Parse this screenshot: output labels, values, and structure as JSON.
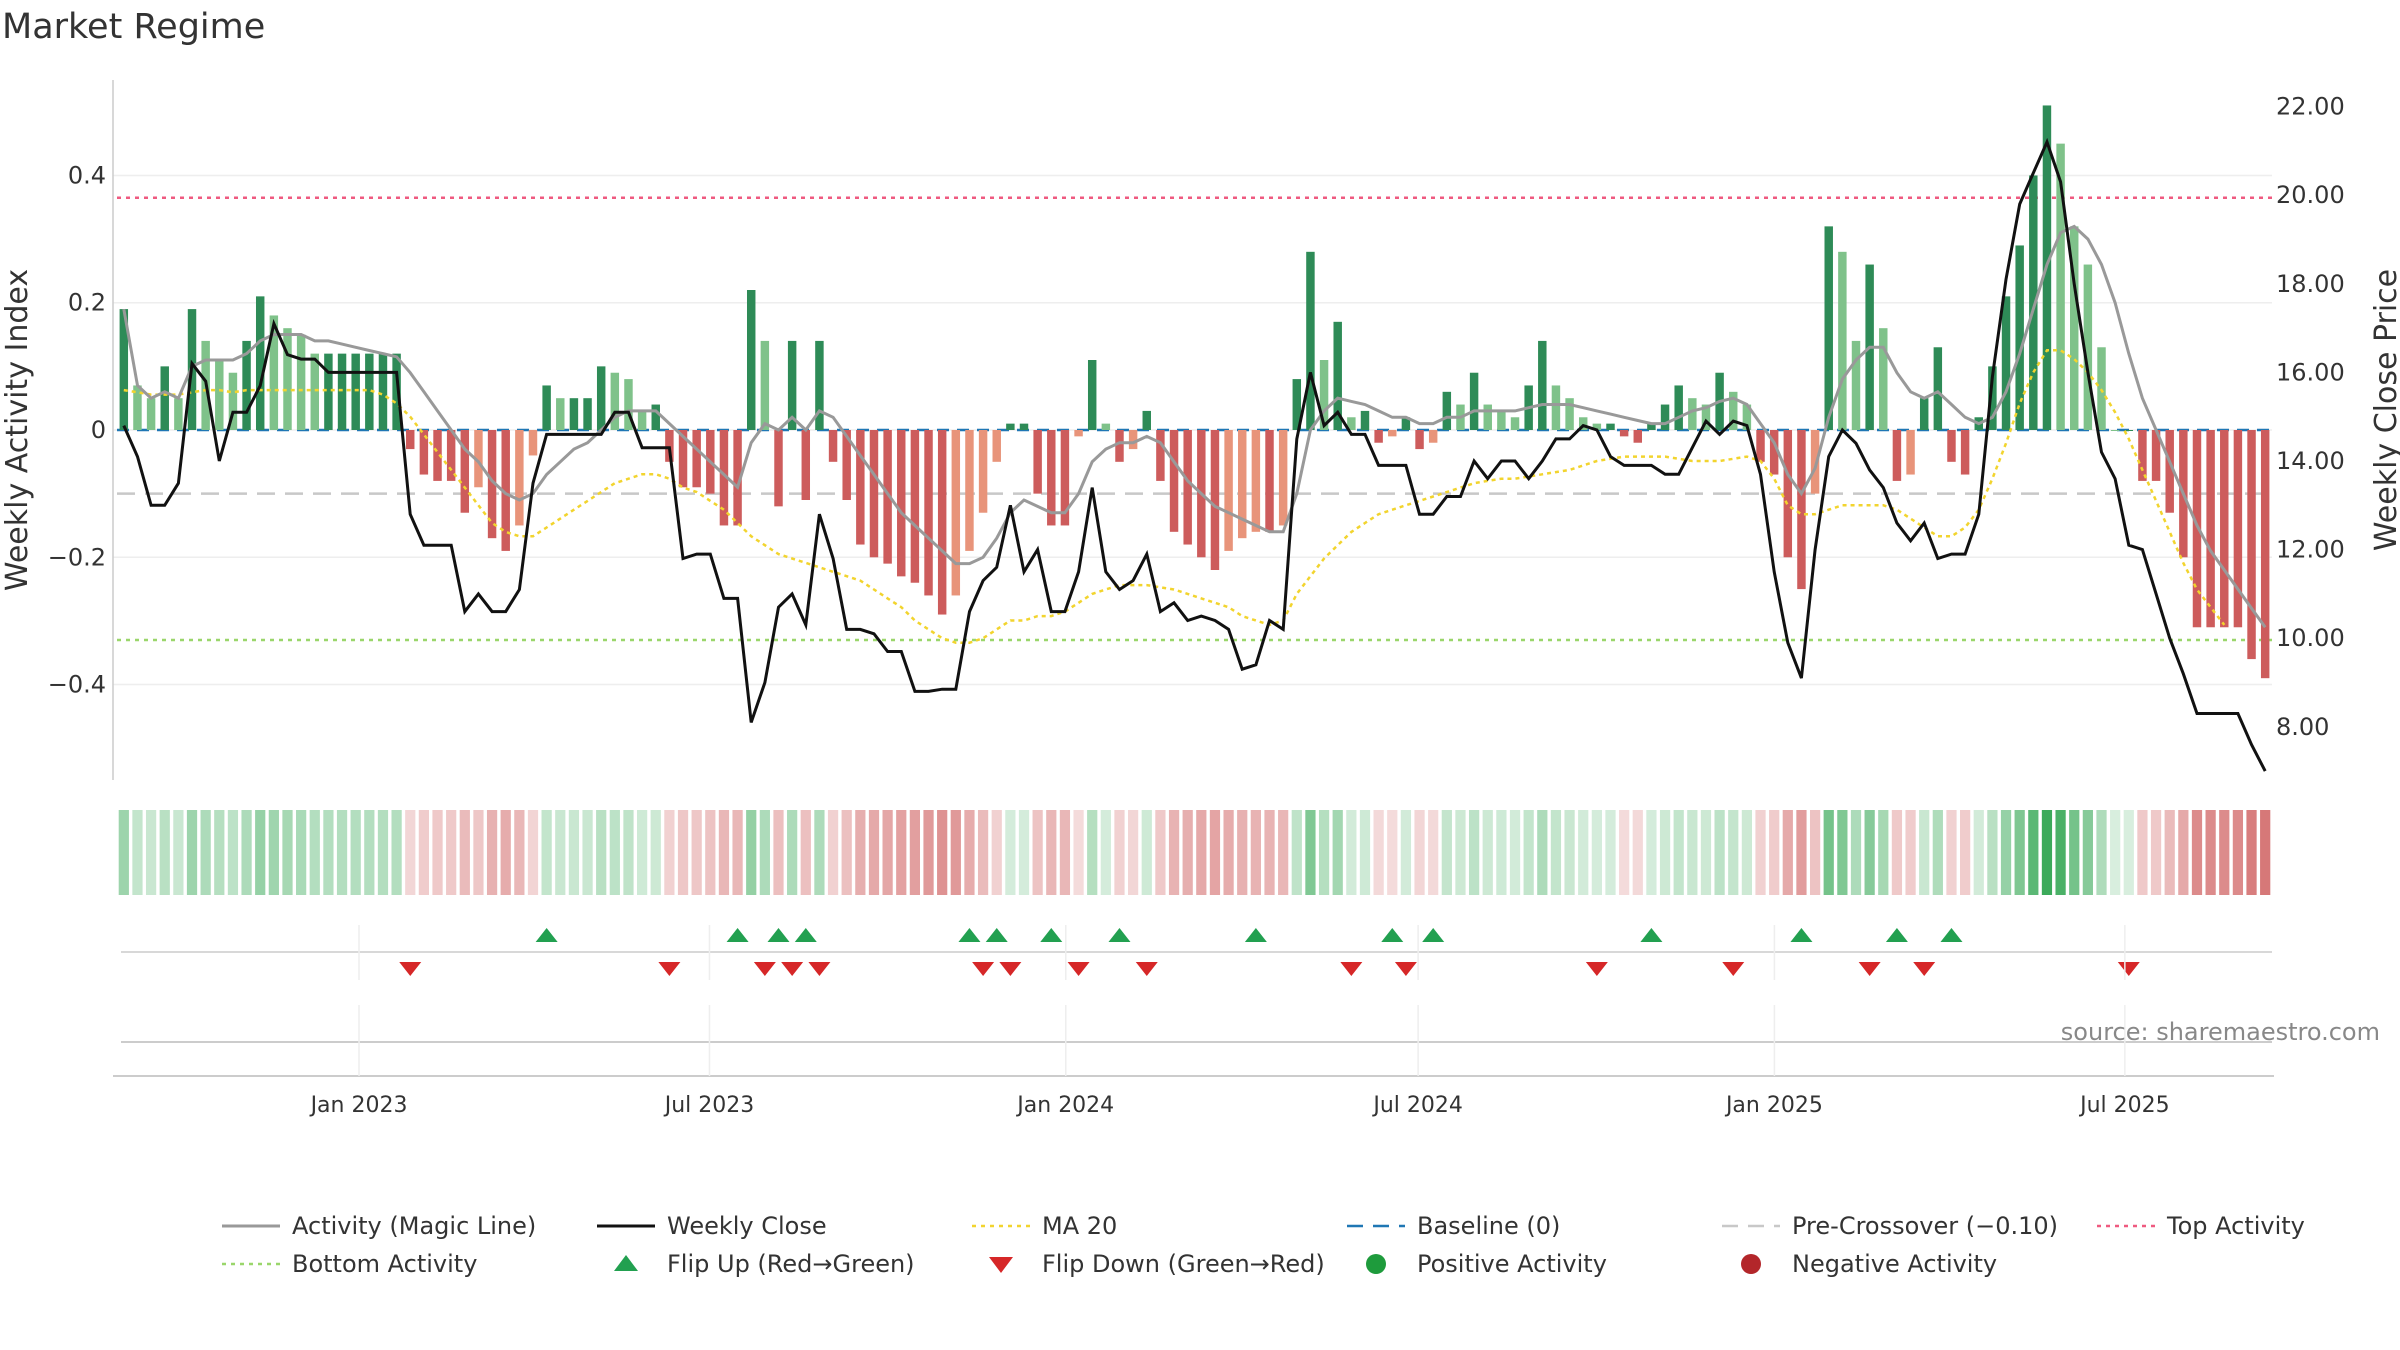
{
  "chart_data": {
    "type": "bar",
    "title": "Market Regime",
    "ylabel_left": "Weekly Activity Index",
    "ylabel_right": "Weekly Close Price",
    "source": "source: sharemaestro.com",
    "x_range": [
      "2022-08-29",
      "2025-09-15"
    ],
    "ylim_left": [
      -0.55,
      0.55
    ],
    "ylim_right": [
      6.8,
      22.6
    ],
    "yticks_left": [
      {
        "value": 0.4,
        "label": "0.4"
      },
      {
        "value": 0.2,
        "label": "0.2"
      },
      {
        "value": 0,
        "label": "0"
      },
      {
        "value": -0.2,
        "label": "−0.2"
      },
      {
        "value": -0.4,
        "label": "−0.4"
      }
    ],
    "yticks_right": [
      {
        "value": 22,
        "label": "22.00"
      },
      {
        "value": 20,
        "label": "20.00"
      },
      {
        "value": 18,
        "label": "18.00"
      },
      {
        "value": 16,
        "label": "16.00"
      },
      {
        "value": 14,
        "label": "14.00"
      },
      {
        "value": 12,
        "label": "12.00"
      },
      {
        "value": 10,
        "label": "10.00"
      },
      {
        "value": 8,
        "label": "8.00"
      }
    ],
    "xticks": [
      {
        "date": "2023-01-01",
        "label": "Jan 2023"
      },
      {
        "date": "2023-07-01",
        "label": "Jul 2023"
      },
      {
        "date": "2024-01-01",
        "label": "Jan 2024"
      },
      {
        "date": "2024-07-01",
        "label": "Jul 2024"
      },
      {
        "date": "2025-01-01",
        "label": "Jan 2025"
      },
      {
        "date": "2025-07-01",
        "label": "Jul 2025"
      }
    ],
    "reference_lines": {
      "baseline": 0,
      "pre_crossover": -0.1,
      "top_activity": 0.365,
      "bottom_activity": -0.33
    },
    "activity": [
      0.19,
      0.07,
      0.05,
      0.1,
      0.05,
      0.19,
      0.14,
      0.11,
      0.09,
      0.14,
      0.21,
      0.18,
      0.16,
      0.15,
      0.12,
      0.12,
      0.12,
      0.12,
      0.12,
      0.12,
      0.12,
      -0.03,
      -0.07,
      -0.08,
      -0.08,
      -0.13,
      -0.09,
      -0.17,
      -0.19,
      -0.15,
      -0.04,
      0.07,
      0.05,
      0.05,
      0.05,
      0.1,
      0.09,
      0.08,
      0.03,
      0.04,
      -0.05,
      -0.09,
      -0.09,
      -0.1,
      -0.15,
      -0.15,
      0.22,
      0.14,
      -0.12,
      0.14,
      -0.11,
      0.14,
      -0.05,
      -0.11,
      -0.18,
      -0.2,
      -0.21,
      -0.23,
      -0.24,
      -0.26,
      -0.29,
      -0.26,
      -0.19,
      -0.13,
      -0.05,
      0.01,
      0.01,
      -0.1,
      -0.15,
      -0.15,
      -0.01,
      0.11,
      0.01,
      -0.05,
      -0.03,
      0.03,
      -0.08,
      -0.16,
      -0.18,
      -0.2,
      -0.22,
      -0.19,
      -0.17,
      -0.16,
      -0.16,
      -0.15,
      0.08,
      0.28,
      0.11,
      0.17,
      0.02,
      0.03,
      -0.02,
      -0.01,
      0.02,
      -0.03,
      -0.02,
      0.06,
      0.04,
      0.09,
      0.04,
      0.03,
      0.02,
      0.07,
      0.14,
      0.07,
      0.05,
      0.02,
      0.01,
      0.01,
      -0.01,
      -0.02,
      0.01,
      0.04,
      0.07,
      0.05,
      0.04,
      0.09,
      0.06,
      0.04,
      -0.05,
      -0.07,
      -0.2,
      -0.25,
      -0.1,
      0.32,
      0.28,
      0.14,
      0.26,
      0.16,
      -0.08,
      -0.07,
      0.05,
      0.13,
      -0.05,
      -0.07,
      0.02,
      0.1,
      0.21,
      0.29,
      0.4,
      0.51,
      0.45,
      0.32,
      0.26,
      0.13,
      0,
      0,
      -0.08,
      -0.08,
      -0.13,
      -0.2,
      -0.31,
      -0.31,
      -0.31,
      -0.31,
      -0.36,
      -0.39
    ],
    "close": [
      14.8,
      14.1,
      13.0,
      13.0,
      13.5,
      16.2,
      15.8,
      14.0,
      15.1,
      15.1,
      15.7,
      17.1,
      16.4,
      16.3,
      16.3,
      16.0,
      16.0,
      16.0,
      16.0,
      16.0,
      16.0,
      12.8,
      12.1,
      12.1,
      12.1,
      10.6,
      11.0,
      10.6,
      10.6,
      11.1,
      13.5,
      14.6,
      14.6,
      14.6,
      14.6,
      14.6,
      15.1,
      15.1,
      14.3,
      14.3,
      14.3,
      11.8,
      11.9,
      11.9,
      10.9,
      10.9,
      8.1,
      9.0,
      10.7,
      11.0,
      10.3,
      12.8,
      11.8,
      10.2,
      10.2,
      10.1,
      9.7,
      9.7,
      8.8,
      8.8,
      8.85,
      8.85,
      10.6,
      11.3,
      11.6,
      13.0,
      11.5,
      12.0,
      10.6,
      10.6,
      11.5,
      13.4,
      11.5,
      11.1,
      11.3,
      11.9,
      10.6,
      10.8,
      10.4,
      10.5,
      10.4,
      10.2,
      9.3,
      9.4,
      10.4,
      10.2,
      14.5,
      16.0,
      14.8,
      15.1,
      14.6,
      14.6,
      13.9,
      13.9,
      13.9,
      12.8,
      12.8,
      13.2,
      13.2,
      14.0,
      13.6,
      14.0,
      14.0,
      13.6,
      14.0,
      14.5,
      14.5,
      14.8,
      14.7,
      14.1,
      13.9,
      13.9,
      13.9,
      13.7,
      13.7,
      14.3,
      14.9,
      14.6,
      14.9,
      14.8,
      13.7,
      11.5,
      9.9,
      9.1,
      12.0,
      14.1,
      14.7,
      14.4,
      13.8,
      13.4,
      12.6,
      12.2,
      12.6,
      11.8,
      11.9,
      11.9,
      12.8,
      15.9,
      18.1,
      19.8,
      20.5,
      21.2,
      20.3,
      18.0,
      16.0,
      14.2,
      13.6,
      12.1,
      12.0,
      11.0,
      10.0,
      9.2,
      8.3,
      8.3,
      8.3,
      8.3,
      7.6,
      7.0
    ],
    "magic_line": [
      0.19,
      0.07,
      0.05,
      0.06,
      0.05,
      0.1,
      0.11,
      0.11,
      0.11,
      0.12,
      0.14,
      0.15,
      0.15,
      0.15,
      0.14,
      0.14,
      0.135,
      0.13,
      0.125,
      0.12,
      0.115,
      0.09,
      0.06,
      0.03,
      0.0,
      -0.03,
      -0.05,
      -0.08,
      -0.1,
      -0.11,
      -0.1,
      -0.07,
      -0.05,
      -0.03,
      -0.02,
      0.0,
      0.02,
      0.03,
      0.03,
      0.03,
      0.01,
      -0.01,
      -0.03,
      -0.05,
      -0.07,
      -0.09,
      -0.02,
      0.01,
      0.0,
      0.02,
      0.0,
      0.03,
      0.02,
      -0.01,
      -0.04,
      -0.07,
      -0.1,
      -0.13,
      -0.15,
      -0.17,
      -0.19,
      -0.21,
      -0.21,
      -0.2,
      -0.17,
      -0.13,
      -0.11,
      -0.12,
      -0.13,
      -0.13,
      -0.1,
      -0.05,
      -0.03,
      -0.02,
      -0.02,
      -0.01,
      -0.02,
      -0.05,
      -0.08,
      -0.1,
      -0.12,
      -0.13,
      -0.14,
      -0.15,
      -0.16,
      -0.16,
      -0.1,
      0.0,
      0.03,
      0.05,
      0.045,
      0.04,
      0.03,
      0.02,
      0.02,
      0.01,
      0.01,
      0.02,
      0.02,
      0.03,
      0.03,
      0.03,
      0.03,
      0.035,
      0.04,
      0.04,
      0.04,
      0.035,
      0.03,
      0.025,
      0.02,
      0.015,
      0.01,
      0.01,
      0.02,
      0.03,
      0.035,
      0.045,
      0.05,
      0.04,
      0.01,
      -0.02,
      -0.07,
      -0.1,
      -0.06,
      0.02,
      0.08,
      0.11,
      0.13,
      0.13,
      0.09,
      0.06,
      0.05,
      0.06,
      0.04,
      0.02,
      0.01,
      0.02,
      0.06,
      0.12,
      0.19,
      0.26,
      0.31,
      0.32,
      0.3,
      0.26,
      0.2,
      0.12,
      0.05,
      0.0,
      -0.05,
      -0.1,
      -0.15,
      -0.19,
      -0.22,
      -0.25,
      -0.28,
      -0.31
    ],
    "ma20": [
      15.6,
      15.55,
      15.5,
      15.5,
      15.5,
      15.55,
      15.6,
      15.6,
      15.55,
      15.6,
      15.6,
      15.6,
      15.6,
      15.6,
      15.6,
      15.6,
      15.6,
      15.6,
      15.6,
      15.5,
      15.3,
      15.0,
      14.6,
      14.2,
      13.8,
      13.4,
      13.0,
      12.6,
      12.4,
      12.3,
      12.3,
      12.5,
      12.7,
      12.9,
      13.1,
      13.3,
      13.5,
      13.6,
      13.7,
      13.7,
      13.6,
      13.4,
      13.3,
      13.1,
      12.9,
      12.6,
      12.3,
      12.1,
      11.9,
      11.8,
      11.7,
      11.6,
      11.5,
      11.4,
      11.3,
      11.1,
      10.9,
      10.7,
      10.4,
      10.2,
      10.0,
      9.9,
      9.9,
      10.0,
      10.2,
      10.4,
      10.4,
      10.5,
      10.5,
      10.6,
      10.8,
      11.0,
      11.1,
      11.2,
      11.2,
      11.2,
      11.15,
      11.1,
      11.0,
      10.9,
      10.8,
      10.7,
      10.5,
      10.4,
      10.3,
      10.4,
      11.0,
      11.4,
      11.8,
      12.1,
      12.4,
      12.6,
      12.8,
      12.9,
      13.0,
      13.1,
      13.2,
      13.3,
      13.4,
      13.5,
      13.55,
      13.6,
      13.6,
      13.65,
      13.7,
      13.75,
      13.8,
      13.9,
      14.0,
      14.05,
      14.1,
      14.1,
      14.1,
      14.1,
      14.05,
      14.0,
      14.0,
      14.0,
      14.05,
      14.1,
      14.0,
      13.6,
      13.0,
      12.8,
      12.8,
      12.9,
      13.0,
      13.0,
      13.0,
      13.0,
      12.9,
      12.7,
      12.5,
      12.3,
      12.3,
      12.5,
      12.9,
      13.6,
      14.4,
      15.3,
      16.0,
      16.5,
      16.5,
      16.3,
      16.0,
      15.6,
      15.1,
      14.5,
      13.8,
      13.1,
      12.4,
      11.7,
      11.1,
      10.7,
      10.3
    ],
    "flip_up_weeks": [
      31,
      45,
      48,
      50,
      62,
      64,
      68,
      73,
      83,
      93,
      96,
      112,
      123,
      130,
      134
    ],
    "flip_down_weeks": [
      21,
      40,
      47,
      49,
      51,
      63,
      65,
      70,
      75,
      90,
      94,
      108,
      118,
      128,
      132,
      147
    ],
    "legend": [
      {
        "label": "Activity (Magic Line)",
        "style": "line",
        "color": "#999999"
      },
      {
        "label": "Weekly Close",
        "style": "line",
        "color": "#111111"
      },
      {
        "label": "MA 20",
        "style": "dotted",
        "color": "#f2d42e"
      },
      {
        "label": "Baseline (0)",
        "style": "dashed",
        "color": "#1f77b4"
      },
      {
        "label": "Pre-Crossover (−0.10)",
        "style": "dashed",
        "color": "#c8c8c8"
      },
      {
        "label": "Top Activity",
        "style": "dotted",
        "color": "#ef5a80"
      },
      {
        "label": "Bottom Activity",
        "style": "dotted",
        "color": "#9ad66b"
      },
      {
        "label": "Flip Up (Red→Green)",
        "style": "triangle-up",
        "color": "#22a050"
      },
      {
        "label": "Flip Down (Green→Red)",
        "style": "triangle-down",
        "color": "#d62728"
      },
      {
        "label": "Positive Activity",
        "style": "dot",
        "color": "#1e9b3c"
      },
      {
        "label": "Negative Activity",
        "style": "dot",
        "color": "#b3262a"
      }
    ],
    "colors": {
      "pos_strong": "#2e8b57",
      "pos_light": "#7fc28a",
      "neg_strong": "#cd5c5c",
      "neg_light": "#e8947a",
      "close": "#111111",
      "magic": "#999999"
    }
  }
}
